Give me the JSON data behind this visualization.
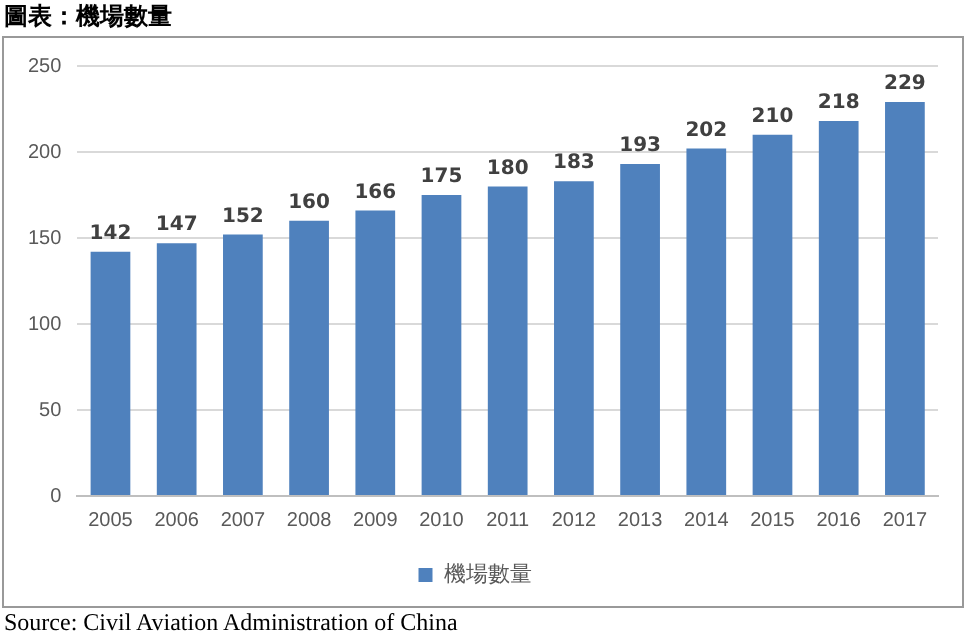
{
  "chart_data": {
    "type": "bar",
    "title": "圖表：機場數量",
    "categories": [
      "2005",
      "2006",
      "2007",
      "2008",
      "2009",
      "2010",
      "2011",
      "2012",
      "2013",
      "2014",
      "2015",
      "2016",
      "2017"
    ],
    "series": [
      {
        "name": "機場數量",
        "color": "#4f81bd",
        "values": [
          142,
          147,
          152,
          160,
          166,
          175,
          180,
          183,
          193,
          202,
          210,
          218,
          229
        ]
      }
    ],
    "ylim": [
      0,
      250
    ],
    "yticks": [
      0,
      50,
      100,
      150,
      200,
      250
    ],
    "grid": "y",
    "legend": "bottom",
    "data_labels": true,
    "annotations": [
      "Source: Civil Aviation Administration of China"
    ]
  }
}
